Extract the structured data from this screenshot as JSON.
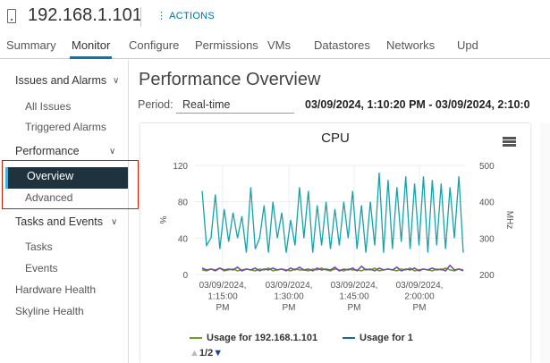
{
  "header": {
    "title": "192.168.1.101",
    "actions_label": "ACTIONS",
    "host_icon": "server-icon"
  },
  "tabs": [
    {
      "label": "Summary"
    },
    {
      "label": "Monitor",
      "active": true
    },
    {
      "label": "Configure"
    },
    {
      "label": "Permissions"
    },
    {
      "label": "VMs"
    },
    {
      "label": "Datastores"
    },
    {
      "label": "Networks"
    },
    {
      "label": "Upd"
    }
  ],
  "sidebar": {
    "issues": {
      "label": "Issues and Alarms",
      "items": [
        "All Issues",
        "Triggered Alarms"
      ]
    },
    "performance": {
      "label": "Performance",
      "items": [
        "Overview",
        "Advanced"
      ],
      "selected": "Overview"
    },
    "tasks": {
      "label": "Tasks and Events",
      "items": [
        "Tasks",
        "Events"
      ]
    },
    "hardware": "Hardware Health",
    "skyline": "Skyline Health"
  },
  "main": {
    "title": "Performance Overview",
    "period_label": "Period:",
    "period_value": "Real-time",
    "range": "03/09/2024, 1:10:20 PM - 03/09/2024, 2:10:0"
  },
  "chart_data": {
    "type": "line",
    "title": "CPU",
    "ylabel": "%",
    "y2label": "MHz",
    "ylim": [
      0,
      120
    ],
    "y2lim": [
      200,
      500
    ],
    "yticks": [
      "0",
      "40",
      "80",
      "120"
    ],
    "y2ticks": [
      "200",
      "300",
      "400",
      "500"
    ],
    "xlim": [
      "03/09/2024, 1:10:20 PM",
      "03/09/2024, 2:10:00 PM"
    ],
    "xticks": [
      [
        "03/09/2024,",
        "1:15:00",
        "PM"
      ],
      [
        "03/09/2024,",
        "1:30:00",
        "PM"
      ],
      [
        "03/09/2024,",
        "1:45:00",
        "PM"
      ],
      [
        "03/09/2024,",
        "2:00:00",
        "PM"
      ]
    ],
    "grid": true,
    "series": [
      {
        "name": "Usage for 192.168.1.101",
        "color": "#62a420",
        "axis": "left",
        "values": [
          5,
          4,
          6,
          5,
          7,
          4,
          5,
          6,
          4,
          5,
          6,
          5,
          4,
          6,
          5,
          7,
          4,
          5,
          6,
          5,
          4,
          6,
          5,
          5,
          4,
          6,
          5,
          7,
          5,
          4,
          6,
          5,
          4,
          6,
          5,
          5,
          4,
          6,
          5,
          7,
          4,
          5,
          6,
          5,
          4,
          6,
          5,
          7,
          4,
          5,
          6,
          5,
          4,
          6,
          5,
          7,
          5,
          4,
          6,
          5
        ]
      },
      {
        "name": "Usage for 1",
        "color": "#17a2a8",
        "axis": "right",
        "values": [
          430,
          280,
          300,
          420,
          270,
          380,
          290,
          370,
          300,
          360,
          260,
          440,
          270,
          300,
          390,
          260,
          400,
          300,
          370,
          260,
          350,
          280,
          440,
          300,
          430,
          260,
          390,
          280,
          400,
          270,
          380,
          280,
          400,
          300,
          430,
          270,
          390,
          260,
          400,
          280,
          480,
          260,
          460,
          270,
          440,
          290,
          470,
          270,
          450,
          280,
          470,
          260,
          460,
          280,
          450,
          270,
          440,
          300,
          470,
          260
        ]
      },
      {
        "color": "#7b4aa6",
        "axis": "left",
        "values": [
          7,
          5,
          6,
          4,
          7,
          5,
          6,
          5,
          8,
          4,
          6,
          5,
          7,
          4,
          6,
          5,
          7,
          5,
          6,
          4,
          7,
          5,
          8,
          5,
          6,
          4,
          7,
          5,
          6,
          5,
          8,
          4,
          6,
          5,
          7,
          4,
          9,
          5,
          6,
          4,
          7,
          5,
          6,
          5,
          8,
          4,
          6,
          5,
          7,
          4,
          6,
          5,
          7,
          5,
          6,
          4,
          10,
          5,
          6,
          4
        ]
      }
    ],
    "legend": {
      "position": "bottom-left",
      "page": "1/2"
    }
  }
}
